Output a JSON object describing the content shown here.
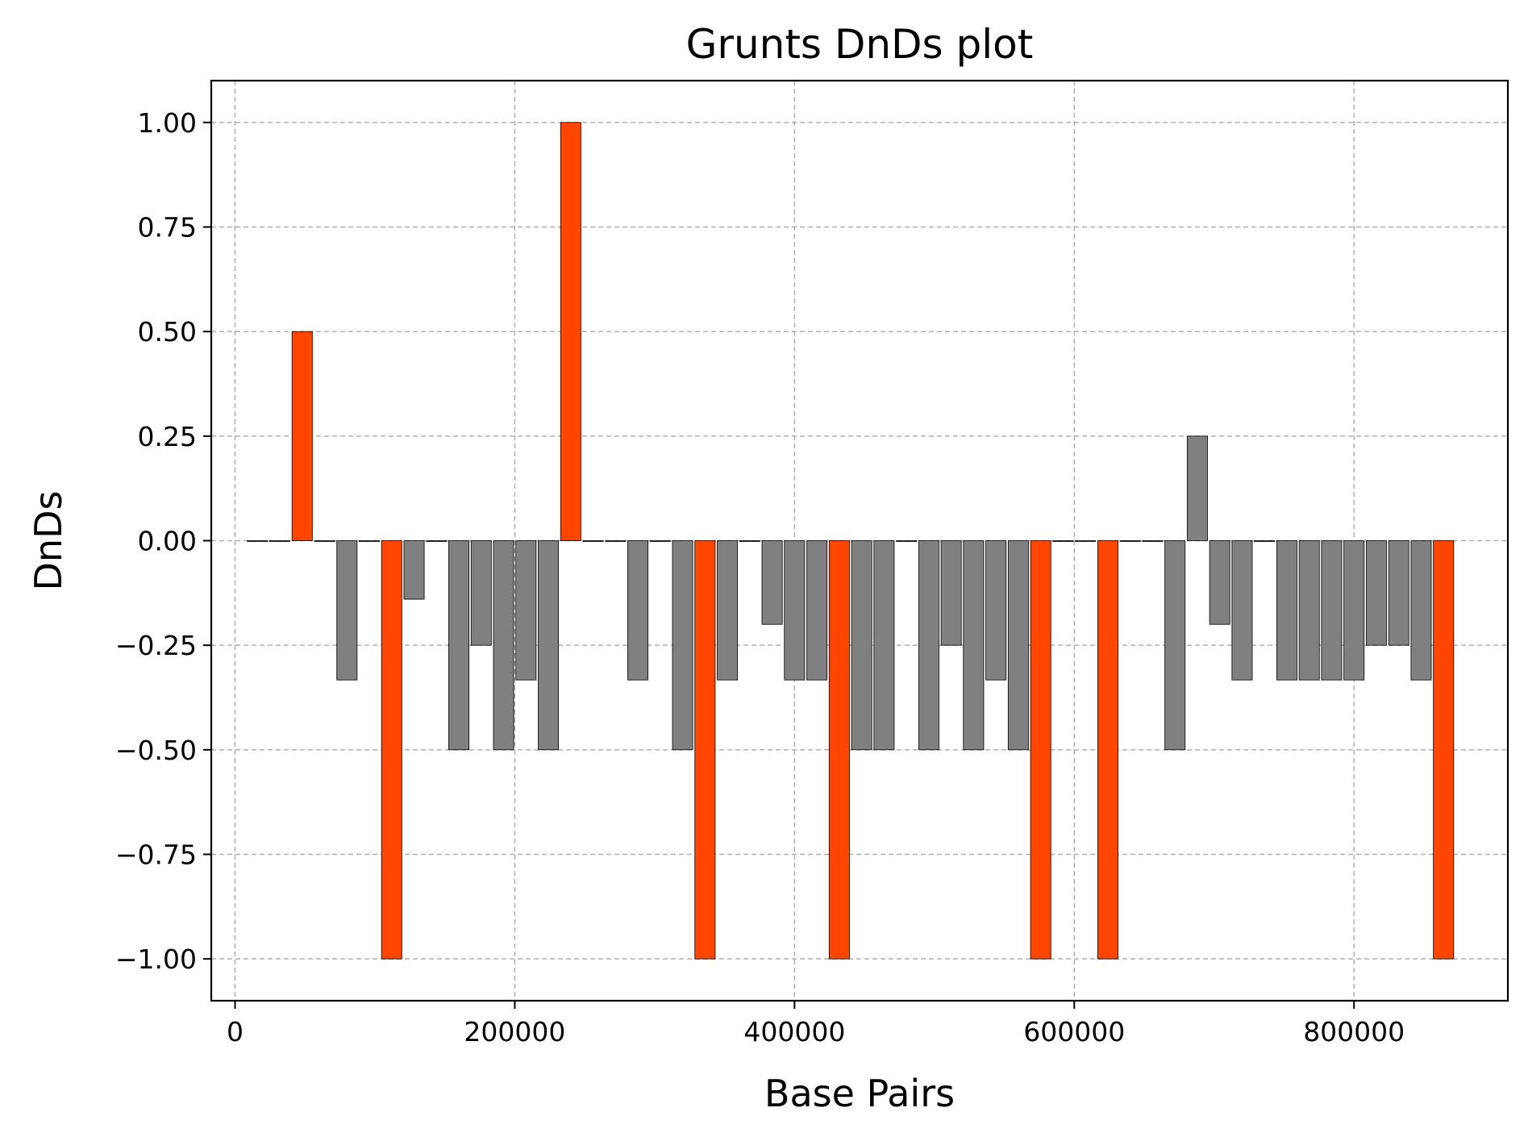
{
  "chart_data": {
    "type": "bar",
    "title": "Grunts DnDs plot",
    "xlabel": "Base Pairs",
    "ylabel": "DnDs",
    "xlim": [
      -17000,
      910000
    ],
    "ylim": [
      -1.1,
      1.1
    ],
    "xticks": [
      0,
      200000,
      400000,
      600000,
      800000
    ],
    "xtick_labels": [
      "0",
      "200000",
      "400000",
      "600000",
      "800000"
    ],
    "yticks": [
      1.0,
      0.75,
      0.5,
      0.25,
      0.0,
      -0.25,
      -0.5,
      -0.75,
      -1.0
    ],
    "ytick_labels": [
      "1.00",
      "0.75",
      "0.50",
      "0.25",
      "0.00",
      "−0.25",
      "−0.50",
      "−0.75",
      "−1.00"
    ],
    "grid": true,
    "bar_width": 14500,
    "colors": {
      "normal": "#808080",
      "highlight": "#ff4500"
    },
    "bars": [
      {
        "x": 16000,
        "value": 0.0,
        "highlight": false
      },
      {
        "x": 32000,
        "value": 0.0,
        "highlight": false
      },
      {
        "x": 48000,
        "value": 0.5,
        "highlight": true
      },
      {
        "x": 64000,
        "value": 0.0,
        "highlight": false
      },
      {
        "x": 80000,
        "value": -0.333,
        "highlight": false
      },
      {
        "x": 96000,
        "value": 0.0,
        "highlight": false
      },
      {
        "x": 112000,
        "value": -1.0,
        "highlight": true
      },
      {
        "x": 128000,
        "value": -0.14,
        "highlight": false
      },
      {
        "x": 144000,
        "value": 0.0,
        "highlight": false
      },
      {
        "x": 160000,
        "value": -0.5,
        "highlight": false
      },
      {
        "x": 176000,
        "value": -0.25,
        "highlight": false
      },
      {
        "x": 192000,
        "value": -0.5,
        "highlight": false
      },
      {
        "x": 208000,
        "value": -0.333,
        "highlight": false
      },
      {
        "x": 224000,
        "value": -0.5,
        "highlight": false
      },
      {
        "x": 240000,
        "value": 1.0,
        "highlight": true
      },
      {
        "x": 256000,
        "value": 0.0,
        "highlight": false
      },
      {
        "x": 272000,
        "value": 0.0,
        "highlight": false
      },
      {
        "x": 288000,
        "value": -0.333,
        "highlight": false
      },
      {
        "x": 304000,
        "value": 0.0,
        "highlight": false
      },
      {
        "x": 320000,
        "value": -0.5,
        "highlight": false
      },
      {
        "x": 336000,
        "value": -1.0,
        "highlight": true
      },
      {
        "x": 352000,
        "value": -0.333,
        "highlight": false
      },
      {
        "x": 368000,
        "value": 0.0,
        "highlight": false
      },
      {
        "x": 384000,
        "value": -0.2,
        "highlight": false
      },
      {
        "x": 400000,
        "value": -0.333,
        "highlight": false
      },
      {
        "x": 416000,
        "value": -0.333,
        "highlight": false
      },
      {
        "x": 432000,
        "value": -1.0,
        "highlight": true
      },
      {
        "x": 448000,
        "value": -0.5,
        "highlight": false
      },
      {
        "x": 464000,
        "value": -0.5,
        "highlight": false
      },
      {
        "x": 480000,
        "value": 0.0,
        "highlight": false
      },
      {
        "x": 496000,
        "value": -0.5,
        "highlight": false
      },
      {
        "x": 512000,
        "value": -0.25,
        "highlight": false
      },
      {
        "x": 528000,
        "value": -0.5,
        "highlight": false
      },
      {
        "x": 544000,
        "value": -0.333,
        "highlight": false
      },
      {
        "x": 560000,
        "value": -0.5,
        "highlight": false
      },
      {
        "x": 576000,
        "value": -1.0,
        "highlight": true
      },
      {
        "x": 592000,
        "value": 0.0,
        "highlight": false
      },
      {
        "x": 608000,
        "value": 0.0,
        "highlight": false
      },
      {
        "x": 624000,
        "value": -1.0,
        "highlight": true
      },
      {
        "x": 640000,
        "value": 0.0,
        "highlight": false
      },
      {
        "x": 656000,
        "value": 0.0,
        "highlight": false
      },
      {
        "x": 672000,
        "value": -0.5,
        "highlight": false
      },
      {
        "x": 688000,
        "value": 0.25,
        "highlight": false
      },
      {
        "x": 704000,
        "value": -0.2,
        "highlight": false
      },
      {
        "x": 720000,
        "value": -0.333,
        "highlight": false
      },
      {
        "x": 736000,
        "value": 0.0,
        "highlight": false
      },
      {
        "x": 752000,
        "value": -0.333,
        "highlight": false
      },
      {
        "x": 768000,
        "value": -0.333,
        "highlight": false
      },
      {
        "x": 784000,
        "value": -0.333,
        "highlight": false
      },
      {
        "x": 800000,
        "value": -0.333,
        "highlight": false
      },
      {
        "x": 816000,
        "value": -0.25,
        "highlight": false
      },
      {
        "x": 832000,
        "value": -0.25,
        "highlight": false
      },
      {
        "x": 848000,
        "value": -0.333,
        "highlight": false
      },
      {
        "x": 864000,
        "value": -1.0,
        "highlight": true
      }
    ]
  }
}
